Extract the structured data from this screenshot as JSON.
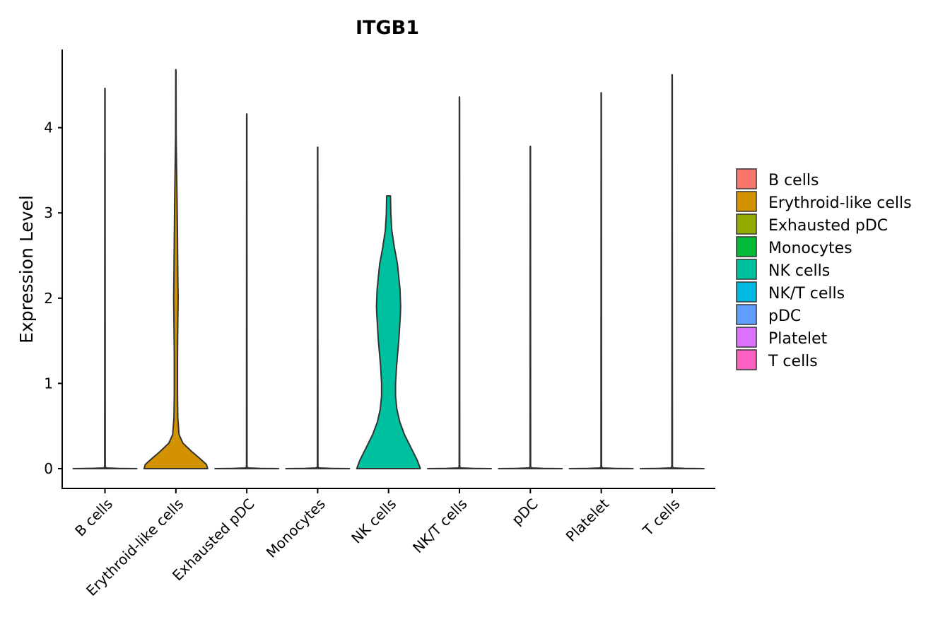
{
  "chart_data": {
    "type": "violin",
    "title": "ITGB1",
    "xlabel": "",
    "ylabel": "Expression Level",
    "ylim": [
      -0.24,
      4.95
    ],
    "yticks": [
      0,
      1,
      2,
      3,
      4
    ],
    "grid": false,
    "legend_position": "right",
    "categories": [
      "B cells",
      "Erythroid-like cells",
      "Exhausted pDC",
      "Monocytes",
      "NK cells",
      "NK/T cells",
      "pDC",
      "Platelet",
      "T cells"
    ],
    "colors": [
      "#F8766D",
      "#D39200",
      "#93AA00",
      "#00BA38",
      "#00C19F",
      "#00B9E3",
      "#619CFF",
      "#DB72FB",
      "#FF61C3"
    ],
    "max_values": [
      4.46,
      4.68,
      4.16,
      3.77,
      3.2,
      4.36,
      3.78,
      4.41,
      4.62
    ],
    "violins": [
      {
        "name": "B cells",
        "profile": [
          [
            0,
            1
          ],
          [
            0.003,
            0.4
          ],
          [
            0.008,
            0.05
          ],
          [
            0.02,
            0.008
          ],
          [
            4.46,
            0.004
          ]
        ]
      },
      {
        "name": "Erythroid-like cells",
        "profile": [
          [
            0,
            1
          ],
          [
            0.05,
            0.96
          ],
          [
            0.12,
            0.75
          ],
          [
            0.2,
            0.5
          ],
          [
            0.3,
            0.22
          ],
          [
            0.4,
            0.1
          ],
          [
            0.6,
            0.06
          ],
          [
            0.9,
            0.05
          ],
          [
            1.3,
            0.05
          ],
          [
            1.7,
            0.06
          ],
          [
            2.0,
            0.07
          ],
          [
            2.3,
            0.06
          ],
          [
            2.7,
            0.05
          ],
          [
            3.2,
            0.035
          ],
          [
            3.6,
            0.02
          ],
          [
            3.9,
            0.008
          ],
          [
            4.68,
            0.004
          ]
        ]
      },
      {
        "name": "Exhausted pDC",
        "profile": [
          [
            0,
            1
          ],
          [
            0.003,
            0.4
          ],
          [
            0.008,
            0.05
          ],
          [
            0.02,
            0.008
          ],
          [
            4.16,
            0.004
          ]
        ]
      },
      {
        "name": "Monocytes",
        "profile": [
          [
            0,
            1
          ],
          [
            0.003,
            0.4
          ],
          [
            0.008,
            0.05
          ],
          [
            0.02,
            0.008
          ],
          [
            3.77,
            0.004
          ]
        ]
      },
      {
        "name": "NK cells",
        "profile": [
          [
            0,
            1
          ],
          [
            0.1,
            0.9
          ],
          [
            0.25,
            0.7
          ],
          [
            0.4,
            0.5
          ],
          [
            0.55,
            0.35
          ],
          [
            0.7,
            0.26
          ],
          [
            0.85,
            0.22
          ],
          [
            1.0,
            0.22
          ],
          [
            1.2,
            0.25
          ],
          [
            1.5,
            0.32
          ],
          [
            1.8,
            0.37
          ],
          [
            1.9,
            0.38
          ],
          [
            2.1,
            0.36
          ],
          [
            2.4,
            0.28
          ],
          [
            2.6,
            0.18
          ],
          [
            2.8,
            0.1
          ],
          [
            3.0,
            0.07
          ],
          [
            3.2,
            0.06
          ]
        ]
      },
      {
        "name": "NK/T cells",
        "profile": [
          [
            0,
            1
          ],
          [
            0.003,
            0.4
          ],
          [
            0.008,
            0.05
          ],
          [
            0.02,
            0.008
          ],
          [
            4.36,
            0.004
          ]
        ]
      },
      {
        "name": "pDC",
        "profile": [
          [
            0,
            1
          ],
          [
            0.003,
            0.4
          ],
          [
            0.008,
            0.05
          ],
          [
            0.02,
            0.008
          ],
          [
            3.78,
            0.004
          ]
        ]
      },
      {
        "name": "Platelet",
        "profile": [
          [
            0,
            1
          ],
          [
            0.003,
            0.4
          ],
          [
            0.008,
            0.05
          ],
          [
            0.02,
            0.008
          ],
          [
            4.41,
            0.004
          ]
        ]
      },
      {
        "name": "T cells",
        "profile": [
          [
            0,
            1
          ],
          [
            0.003,
            0.4
          ],
          [
            0.008,
            0.05
          ],
          [
            0.02,
            0.008
          ],
          [
            4.62,
            0.004
          ]
        ]
      }
    ]
  }
}
